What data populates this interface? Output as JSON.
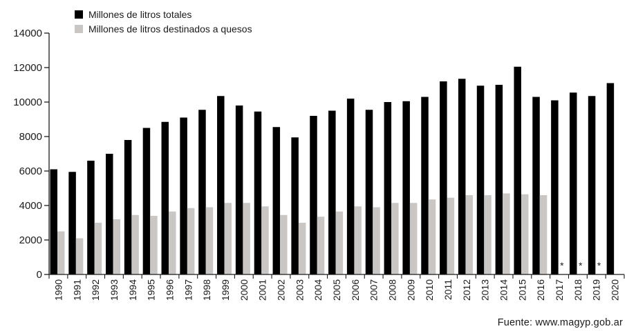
{
  "legend": {
    "total_label": "Millones de litros totales",
    "queso_label": "Millones de litros destinados a quesos"
  },
  "source": "Fuente: www.magyp.gob.ar",
  "colors": {
    "total": "#000000",
    "queso": "#c9c6c4",
    "axis": "#1a1a1a"
  },
  "chart_data": {
    "type": "bar",
    "title": "",
    "xlabel": "",
    "ylabel": "",
    "ylim": [
      0,
      14000
    ],
    "yticks": [
      0,
      2000,
      4000,
      6000,
      8000,
      10000,
      12000,
      14000
    ],
    "grid": false,
    "legend_position": "top-left",
    "categories": [
      "1990",
      "1991",
      "1992",
      "1993",
      "1994",
      "1995",
      "1996",
      "1997",
      "1998",
      "1999",
      "2000",
      "2001",
      "2002",
      "2003",
      "2004",
      "2005",
      "2006",
      "2007",
      "2008",
      "2009",
      "2010",
      "2011",
      "2012",
      "2013",
      "2014",
      "2015",
      "2016",
      "2017",
      "2018",
      "2019",
      "2020"
    ],
    "series": [
      {
        "name": "Millones de litros totales",
        "values": [
          6100,
          5950,
          6600,
          7000,
          7800,
          8500,
          8850,
          9100,
          9550,
          10350,
          9800,
          9450,
          8550,
          7950,
          9200,
          9500,
          10200,
          9550,
          10000,
          10050,
          10300,
          11200,
          11350,
          10950,
          11000,
          12050,
          10300,
          10100,
          10550,
          10350,
          11100
        ]
      },
      {
        "name": "Millones de litros destinados a quesos",
        "values": [
          2500,
          2100,
          3000,
          3200,
          3450,
          3400,
          3650,
          3850,
          3900,
          4150,
          4150,
          3950,
          3450,
          3000,
          3350,
          3650,
          3950,
          3900,
          4150,
          4150,
          4350,
          4450,
          4600,
          4600,
          4700,
          4650,
          4600,
          null,
          null,
          null,
          null
        ]
      }
    ],
    "annotations": {
      "years": [
        "2017",
        "2018",
        "2019"
      ],
      "symbol": "*"
    }
  }
}
